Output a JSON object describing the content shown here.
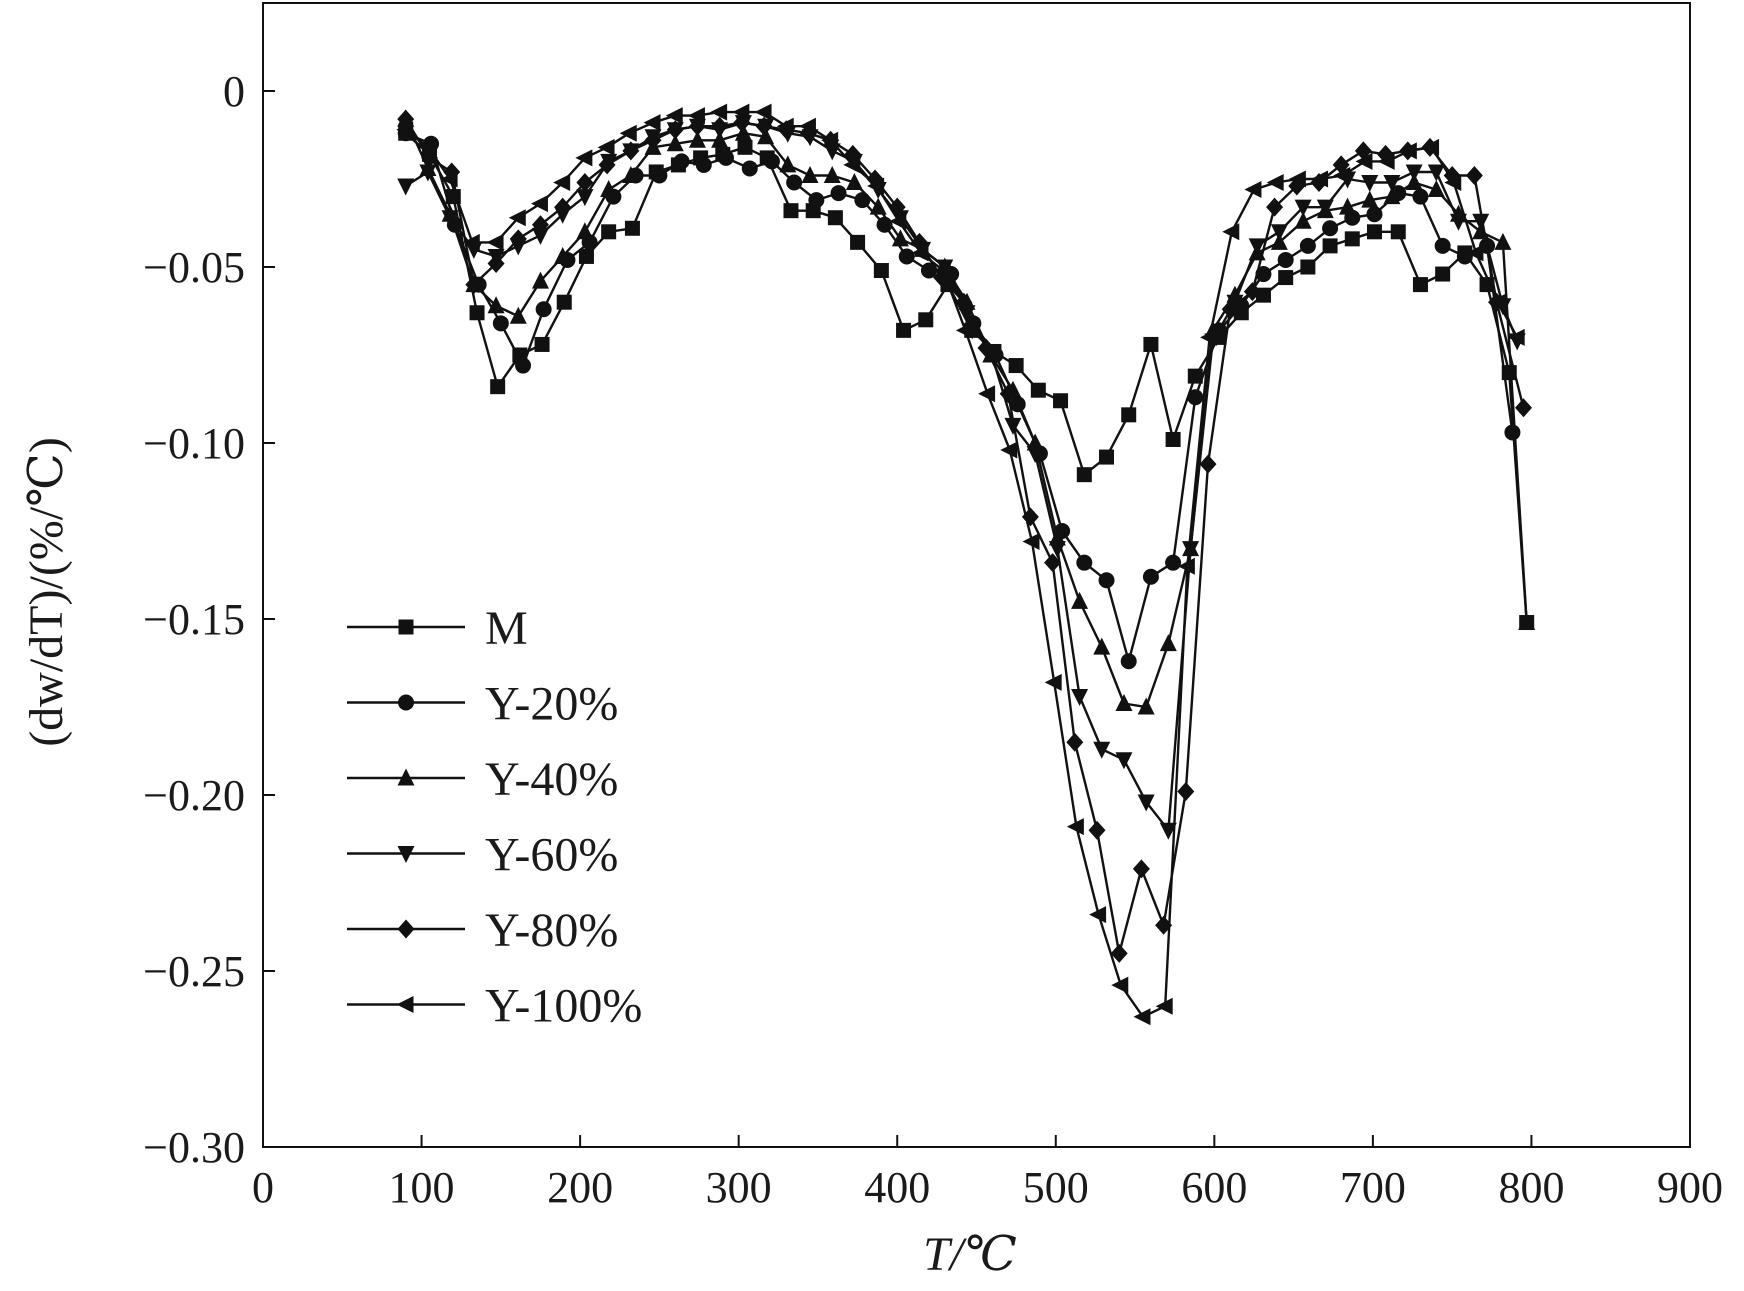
{
  "chart_data": {
    "type": "line",
    "title": "",
    "xlabel": "T/℃",
    "ylabel": "(dw/dT)/(%/℃)",
    "xlim": [
      0,
      900
    ],
    "ylim": [
      -0.3,
      0.025
    ],
    "xticks": [
      0,
      100,
      200,
      300,
      400,
      500,
      600,
      700,
      800,
      900
    ],
    "xtick_labels": [
      "0",
      "100",
      "200",
      "300",
      "400",
      "500",
      "600",
      "700",
      "800",
      "900"
    ],
    "yticks": [
      0,
      -0.05,
      -0.1,
      -0.15,
      -0.2,
      -0.25,
      -0.3
    ],
    "ytick_labels": [
      "0",
      "−0.05",
      "−0.10",
      "−0.15",
      "−0.20",
      "−0.25",
      "−0.30"
    ],
    "grid": false,
    "legend_position": "left",
    "line_color": "#111111",
    "series": [
      {
        "name": "M",
        "marker": "square",
        "x": [
          90,
          105,
          120,
          135,
          148,
          162,
          176,
          190,
          204,
          218,
          233,
          248,
          262,
          276,
          290,
          304,
          318,
          333,
          347,
          361,
          375,
          390,
          404,
          418,
          432,
          447,
          461,
          475,
          489,
          503,
          518,
          532,
          546,
          560,
          574,
          588,
          603,
          617,
          631,
          645,
          659,
          673,
          687,
          701,
          716,
          730,
          744,
          758,
          772,
          786,
          797
        ],
        "values": [
          -0.012,
          -0.018,
          -0.03,
          -0.063,
          -0.084,
          -0.075,
          -0.072,
          -0.06,
          -0.047,
          -0.04,
          -0.039,
          -0.023,
          -0.021,
          -0.019,
          -0.018,
          -0.016,
          -0.019,
          -0.034,
          -0.034,
          -0.036,
          -0.043,
          -0.051,
          -0.068,
          -0.065,
          -0.055,
          -0.068,
          -0.074,
          -0.078,
          -0.085,
          -0.088,
          -0.109,
          -0.104,
          -0.092,
          -0.072,
          -0.099,
          -0.081,
          -0.07,
          -0.063,
          -0.058,
          -0.053,
          -0.05,
          -0.044,
          -0.042,
          -0.04,
          -0.04,
          -0.055,
          -0.052,
          -0.046,
          -0.055,
          -0.08,
          -0.151
        ]
      },
      {
        "name": "Y-20%",
        "marker": "circle",
        "x": [
          90,
          106,
          121,
          136,
          150,
          164,
          177,
          192,
          206,
          221,
          235,
          250,
          264,
          278,
          292,
          307,
          321,
          335,
          349,
          363,
          378,
          392,
          406,
          420,
          434,
          448,
          462,
          476,
          490,
          504,
          518,
          532,
          546,
          560,
          574,
          588,
          603,
          617,
          631,
          645,
          659,
          673,
          687,
          701,
          716,
          730,
          744,
          758,
          772,
          788
        ],
        "values": [
          -0.012,
          -0.015,
          -0.038,
          -0.055,
          -0.066,
          -0.078,
          -0.062,
          -0.048,
          -0.043,
          -0.03,
          -0.024,
          -0.024,
          -0.02,
          -0.021,
          -0.019,
          -0.022,
          -0.02,
          -0.026,
          -0.031,
          -0.029,
          -0.031,
          -0.038,
          -0.047,
          -0.051,
          -0.052,
          -0.066,
          -0.075,
          -0.089,
          -0.103,
          -0.125,
          -0.134,
          -0.139,
          -0.162,
          -0.138,
          -0.134,
          -0.087,
          -0.068,
          -0.061,
          -0.052,
          -0.048,
          -0.044,
          -0.039,
          -0.036,
          -0.035,
          -0.029,
          -0.03,
          -0.044,
          -0.047,
          -0.044,
          -0.097
        ]
      },
      {
        "name": "Y-40%",
        "marker": "triangle-up",
        "x": [
          90,
          104,
          118,
          133,
          147,
          161,
          175,
          189,
          203,
          218,
          232,
          246,
          260,
          274,
          288,
          303,
          317,
          331,
          345,
          359,
          373,
          388,
          402,
          416,
          430,
          444,
          459,
          473,
          487,
          501,
          515,
          529,
          543,
          557,
          571,
          585,
          599,
          613,
          627,
          641,
          656,
          670,
          684,
          698,
          712,
          726,
          740,
          754,
          768,
          782,
          797
        ],
        "values": [
          -0.008,
          -0.022,
          -0.035,
          -0.055,
          -0.061,
          -0.064,
          -0.054,
          -0.047,
          -0.04,
          -0.028,
          -0.024,
          -0.016,
          -0.015,
          -0.014,
          -0.014,
          -0.012,
          -0.013,
          -0.021,
          -0.024,
          -0.024,
          -0.026,
          -0.033,
          -0.042,
          -0.045,
          -0.05,
          -0.06,
          -0.075,
          -0.085,
          -0.1,
          -0.127,
          -0.145,
          -0.158,
          -0.174,
          -0.175,
          -0.157,
          -0.13,
          -0.068,
          -0.058,
          -0.046,
          -0.043,
          -0.037,
          -0.034,
          -0.033,
          -0.031,
          -0.03,
          -0.026,
          -0.028,
          -0.035,
          -0.04,
          -0.043,
          -0.151
        ]
      },
      {
        "name": "Y-60%",
        "marker": "triangle-down",
        "x": [
          90,
          104,
          118,
          133,
          147,
          161,
          175,
          189,
          203,
          218,
          232,
          246,
          260,
          274,
          288,
          303,
          317,
          331,
          345,
          359,
          373,
          388,
          402,
          416,
          430,
          444,
          459,
          473,
          487,
          501,
          515,
          529,
          543,
          557,
          571,
          585,
          599,
          613,
          627,
          641,
          656,
          670,
          684,
          698,
          712,
          726,
          740,
          754,
          768,
          782,
          791
        ],
        "values": [
          -0.027,
          -0.023,
          -0.036,
          -0.045,
          -0.047,
          -0.044,
          -0.041,
          -0.035,
          -0.03,
          -0.02,
          -0.017,
          -0.013,
          -0.011,
          -0.01,
          -0.011,
          -0.009,
          -0.01,
          -0.012,
          -0.013,
          -0.017,
          -0.02,
          -0.028,
          -0.036,
          -0.045,
          -0.05,
          -0.063,
          -0.074,
          -0.095,
          -0.103,
          -0.13,
          -0.172,
          -0.187,
          -0.19,
          -0.202,
          -0.21,
          -0.13,
          -0.071,
          -0.06,
          -0.044,
          -0.04,
          -0.033,
          -0.033,
          -0.025,
          -0.026,
          -0.026,
          -0.023,
          -0.023,
          -0.037,
          -0.037,
          -0.061,
          -0.071
        ]
      },
      {
        "name": "Y-80%",
        "marker": "diamond",
        "x": [
          90,
          105,
          119,
          133,
          147,
          161,
          175,
          189,
          203,
          217,
          232,
          246,
          260,
          274,
          288,
          302,
          316,
          330,
          344,
          358,
          372,
          386,
          400,
          414,
          428,
          442,
          456,
          470,
          484,
          498,
          512,
          526,
          540,
          554,
          568,
          582,
          596,
          610,
          624,
          638,
          652,
          666,
          680,
          694,
          708,
          722,
          736,
          750,
          764,
          778,
          795
        ],
        "values": [
          -0.008,
          -0.019,
          -0.023,
          -0.055,
          -0.049,
          -0.042,
          -0.038,
          -0.033,
          -0.026,
          -0.021,
          -0.017,
          -0.014,
          -0.011,
          -0.01,
          -0.01,
          -0.009,
          -0.01,
          -0.011,
          -0.012,
          -0.014,
          -0.018,
          -0.025,
          -0.033,
          -0.043,
          -0.053,
          -0.06,
          -0.073,
          -0.086,
          -0.121,
          -0.134,
          -0.185,
          -0.21,
          -0.245,
          -0.221,
          -0.237,
          -0.199,
          -0.106,
          -0.062,
          -0.057,
          -0.033,
          -0.027,
          -0.026,
          -0.021,
          -0.017,
          -0.018,
          -0.017,
          -0.016,
          -0.024,
          -0.024,
          -0.06,
          -0.09
        ]
      },
      {
        "name": "Y-100%",
        "marker": "triangle-left",
        "x": [
          90,
          104,
          118,
          132,
          147,
          161,
          175,
          189,
          203,
          217,
          231,
          246,
          260,
          274,
          288,
          302,
          316,
          330,
          344,
          358,
          372,
          387,
          401,
          415,
          429,
          443,
          457,
          471,
          485,
          499,
          513,
          527,
          541,
          555,
          569,
          583,
          597,
          611,
          625,
          639,
          653,
          667,
          681,
          695,
          709,
          723,
          737,
          751,
          765,
          779,
          791
        ],
        "values": [
          -0.011,
          -0.016,
          -0.025,
          -0.043,
          -0.043,
          -0.036,
          -0.032,
          -0.026,
          -0.019,
          -0.016,
          -0.012,
          -0.009,
          -0.007,
          -0.007,
          -0.006,
          -0.006,
          -0.006,
          -0.01,
          -0.01,
          -0.014,
          -0.021,
          -0.027,
          -0.037,
          -0.046,
          -0.051,
          -0.068,
          -0.086,
          -0.102,
          -0.128,
          -0.168,
          -0.209,
          -0.234,
          -0.254,
          -0.263,
          -0.26,
          -0.135,
          -0.07,
          -0.04,
          -0.028,
          -0.026,
          -0.025,
          -0.025,
          -0.024,
          -0.02,
          -0.02,
          -0.017,
          -0.016,
          -0.026,
          -0.046,
          -0.06,
          -0.07
        ]
      }
    ]
  }
}
